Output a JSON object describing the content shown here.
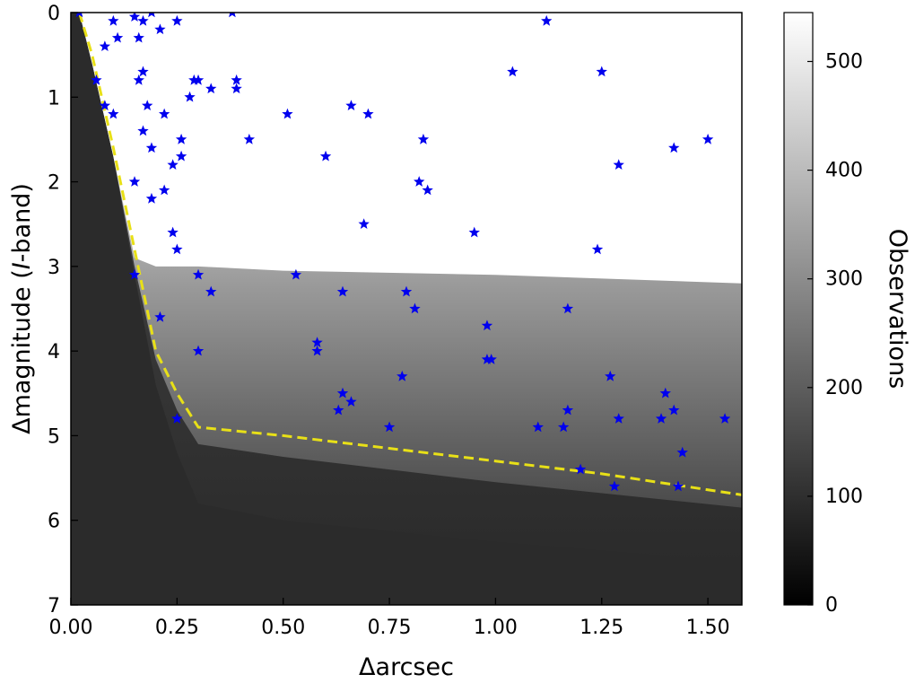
{
  "chart_data": {
    "type": "scatter",
    "xlabel": "Δarcsec",
    "ylabel_prefix": "Δmagnitude (",
    "ylabel_italic": "I",
    "ylabel_suffix": "-band)",
    "colorbar_label": "Observations",
    "xlim": [
      0.0,
      1.58
    ],
    "ylim": [
      0,
      7
    ],
    "y_inverted": true,
    "colorbar_range": [
      0,
      545
    ],
    "x_ticks": [
      "0.00",
      "0.25",
      "0.50",
      "0.75",
      "1.00",
      "1.25",
      "1.50"
    ],
    "x_tick_values": [
      0.0,
      0.25,
      0.5,
      0.75,
      1.0,
      1.25,
      1.5
    ],
    "y_ticks": [
      "0",
      "1",
      "2",
      "3",
      "4",
      "5",
      "6",
      "7"
    ],
    "y_tick_values": [
      0,
      1,
      2,
      3,
      4,
      5,
      6,
      7
    ],
    "colorbar_ticks": [
      "0",
      "100",
      "200",
      "300",
      "400",
      "500"
    ],
    "colorbar_tick_values": [
      0,
      100,
      200,
      300,
      400,
      500
    ],
    "grid": false,
    "contrast_curve": {
      "color": "#e8e017",
      "style": "dashed",
      "x": [
        0.02,
        0.05,
        0.1,
        0.15,
        0.2,
        0.25,
        0.3,
        0.5,
        1.0,
        1.25,
        1.58
      ],
      "y": [
        0.0,
        0.5,
        1.6,
        2.8,
        4.0,
        4.5,
        4.9,
        5.0,
        5.3,
        5.45,
        5.7
      ]
    },
    "sensitivity_boundary": {
      "x": [
        0.02,
        0.05,
        0.1,
        0.15,
        0.2,
        0.25,
        0.3,
        0.5,
        1.0,
        1.58
      ],
      "y_white": [
        0.0,
        0.6,
        1.7,
        2.9,
        3.0,
        3.0,
        3.0,
        3.05,
        3.1,
        3.2
      ],
      "y_gray": [
        0.0,
        0.6,
        1.7,
        3.0,
        4.1,
        4.7,
        5.1,
        5.25,
        5.55,
        5.85
      ],
      "y_black": [
        0.0,
        0.6,
        1.7,
        3.1,
        4.4,
        5.2,
        5.8,
        6.0,
        6.25,
        6.5
      ]
    },
    "marker_color": "#0000ee",
    "marker": "star",
    "points": [
      [
        0.02,
        0.0
      ],
      [
        0.1,
        0.1
      ],
      [
        0.15,
        0.05
      ],
      [
        0.17,
        0.1
      ],
      [
        0.19,
        0.0
      ],
      [
        0.21,
        0.2
      ],
      [
        0.25,
        0.1
      ],
      [
        0.38,
        0.0
      ],
      [
        1.12,
        0.1
      ],
      [
        0.08,
        0.4
      ],
      [
        0.11,
        0.3
      ],
      [
        0.16,
        0.3
      ],
      [
        0.06,
        0.8
      ],
      [
        0.17,
        0.7
      ],
      [
        0.16,
        0.8
      ],
      [
        0.29,
        0.8
      ],
      [
        0.3,
        0.8
      ],
      [
        0.33,
        0.9
      ],
      [
        0.39,
        0.8
      ],
      [
        0.39,
        0.9
      ],
      [
        0.28,
        1.0
      ],
      [
        1.04,
        0.7
      ],
      [
        1.25,
        0.7
      ],
      [
        0.08,
        1.1
      ],
      [
        0.1,
        1.2
      ],
      [
        0.18,
        1.1
      ],
      [
        0.22,
        1.2
      ],
      [
        0.17,
        1.4
      ],
      [
        0.19,
        1.6
      ],
      [
        0.26,
        1.5
      ],
      [
        0.26,
        1.7
      ],
      [
        0.24,
        1.8
      ],
      [
        0.42,
        1.5
      ],
      [
        0.51,
        1.2
      ],
      [
        0.66,
        1.1
      ],
      [
        0.7,
        1.2
      ],
      [
        0.6,
        1.7
      ],
      [
        0.83,
        1.5
      ],
      [
        1.29,
        1.8
      ],
      [
        1.42,
        1.6
      ],
      [
        1.5,
        1.5
      ],
      [
        0.15,
        2.0
      ],
      [
        0.19,
        2.2
      ],
      [
        0.22,
        2.1
      ],
      [
        0.82,
        2.0
      ],
      [
        0.84,
        2.1
      ],
      [
        0.69,
        2.5
      ],
      [
        0.95,
        2.6
      ],
      [
        1.24,
        2.8
      ],
      [
        0.24,
        2.6
      ],
      [
        0.25,
        2.8
      ],
      [
        0.15,
        3.1
      ],
      [
        0.3,
        3.1
      ],
      [
        0.33,
        3.3
      ],
      [
        0.53,
        3.1
      ],
      [
        0.64,
        3.3
      ],
      [
        0.79,
        3.3
      ],
      [
        0.81,
        3.5
      ],
      [
        1.17,
        3.5
      ],
      [
        0.21,
        3.6
      ],
      [
        0.58,
        3.9
      ],
      [
        0.58,
        4.0
      ],
      [
        0.3,
        4.0
      ],
      [
        0.98,
        3.7
      ],
      [
        0.98,
        4.1
      ],
      [
        0.99,
        4.1
      ],
      [
        0.78,
        4.3
      ],
      [
        1.27,
        4.3
      ],
      [
        0.64,
        4.5
      ],
      [
        0.66,
        4.6
      ],
      [
        0.63,
        4.7
      ],
      [
        0.75,
        4.9
      ],
      [
        0.25,
        4.8
      ],
      [
        1.1,
        4.9
      ],
      [
        1.16,
        4.9
      ],
      [
        1.17,
        4.7
      ],
      [
        1.29,
        4.8
      ],
      [
        1.39,
        4.8
      ],
      [
        1.4,
        4.5
      ],
      [
        1.42,
        4.7
      ],
      [
        1.54,
        4.8
      ],
      [
        1.44,
        5.2
      ],
      [
        1.2,
        5.4
      ],
      [
        1.28,
        5.6
      ],
      [
        1.43,
        5.6
      ]
    ]
  }
}
